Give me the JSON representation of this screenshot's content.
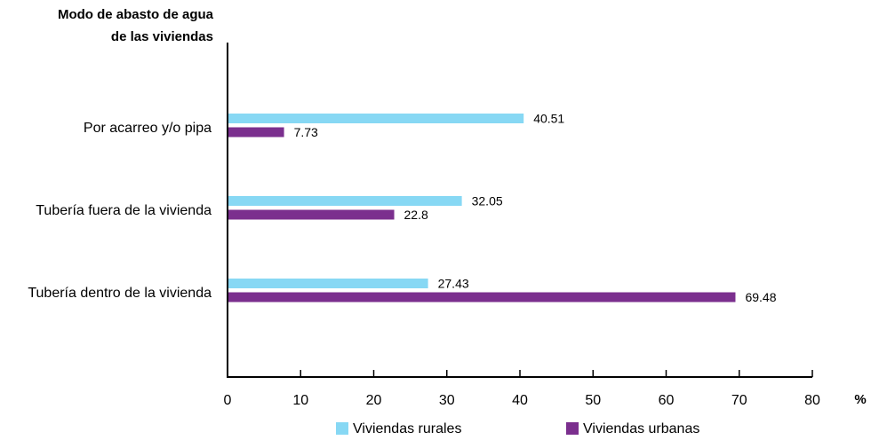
{
  "chart_data": {
    "type": "bar",
    "orientation": "horizontal",
    "ylabel": "Modo de abasto de agua de las viviendas",
    "ylabel_lines": [
      "Modo de abasto de agua",
      "de las viviendas"
    ],
    "xlabel": "%",
    "xlim": [
      0,
      80
    ],
    "xticks": [
      0,
      10,
      20,
      30,
      40,
      50,
      60,
      70,
      80
    ],
    "grid": false,
    "legend_position": "bottom",
    "categories": [
      "Por acarreo y/o pipa",
      "Tubería fuera de la vivienda",
      "Tubería dentro de la vivienda"
    ],
    "series": [
      {
        "name": "Viviendas rurales",
        "color": "#87d8f4",
        "values": [
          40.51,
          32.05,
          27.43
        ],
        "labels": [
          "40.51",
          "32.05",
          "27.43"
        ]
      },
      {
        "name": "Viviendas urbanas",
        "color": "#7b2f8e",
        "values": [
          7.73,
          22.8,
          69.48
        ],
        "labels": [
          "7.73",
          "22.8",
          "69.48"
        ]
      }
    ]
  }
}
